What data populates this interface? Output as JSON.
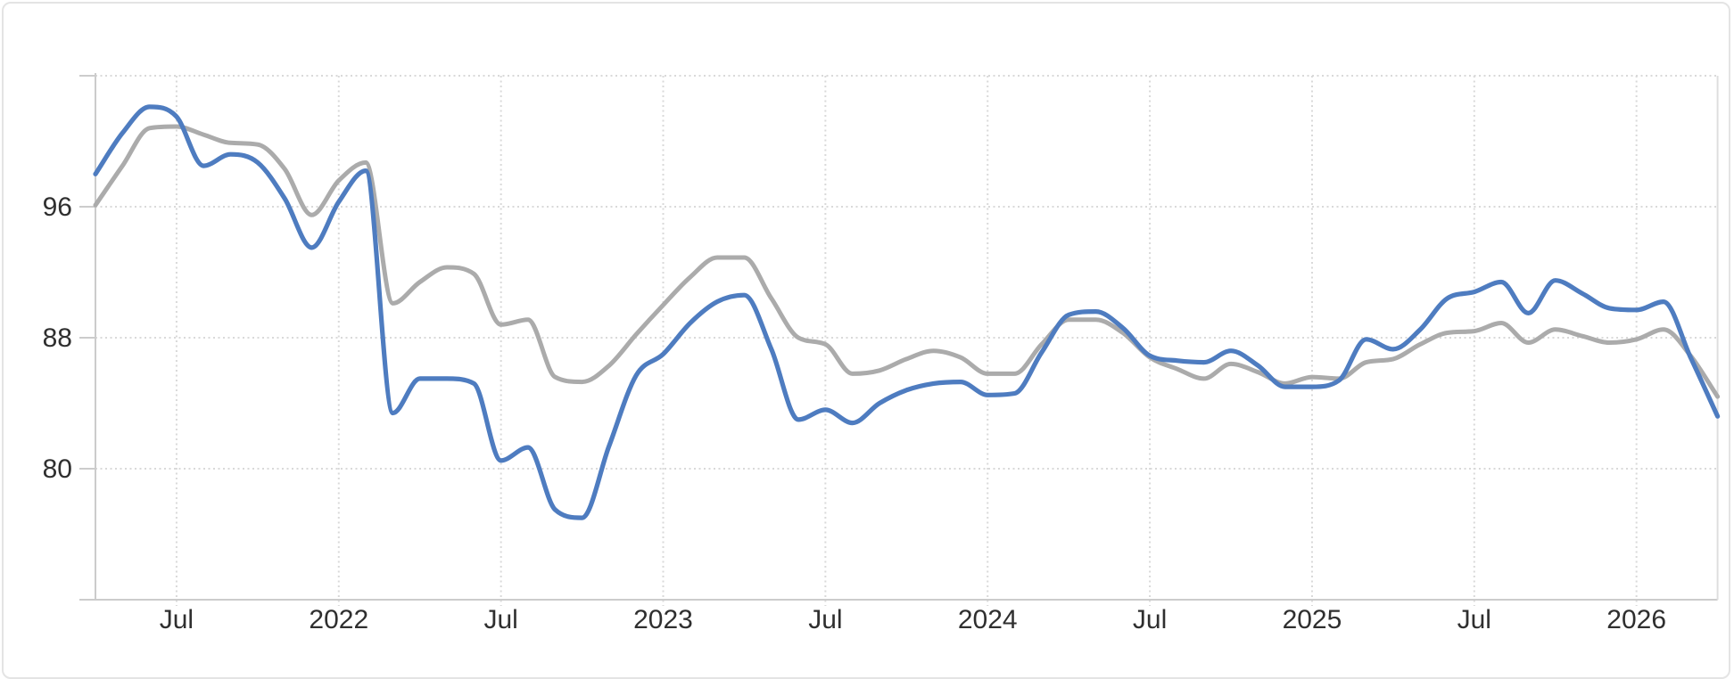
{
  "chart_data": {
    "type": "line",
    "title": "",
    "xlabel": "",
    "ylabel": "",
    "grid": "dotted",
    "legend": "none",
    "ylim": [
      72,
      104
    ],
    "y_gridline_values": [
      104,
      96,
      88,
      80
    ],
    "y_tick_values": [
      96,
      88,
      80
    ],
    "y_tick_labels": [
      "96",
      "88",
      "80"
    ],
    "x_tick_indices": [
      3,
      9,
      15,
      21,
      27,
      33,
      39,
      45,
      51,
      57
    ],
    "x_tick_labels": [
      "Jul",
      "2022",
      "Jul",
      "2023",
      "Jul",
      "2024",
      "Jul",
      "2025",
      "Jul",
      "2026"
    ],
    "x": [
      "2021-04",
      "2021-05",
      "2021-06",
      "2021-07",
      "2021-08",
      "2021-09",
      "2021-10",
      "2021-11",
      "2021-12",
      "2022-01",
      "2022-02",
      "2022-03",
      "2022-04",
      "2022-05",
      "2022-06",
      "2022-07",
      "2022-08",
      "2022-09",
      "2022-10",
      "2022-11",
      "2022-12",
      "2023-01",
      "2023-02",
      "2023-03",
      "2023-04",
      "2023-05",
      "2023-06",
      "2023-07",
      "2023-08",
      "2023-09",
      "2023-10",
      "2023-11",
      "2023-12",
      "2024-01",
      "2024-02",
      "2024-03",
      "2024-04",
      "2024-05",
      "2024-06",
      "2024-07",
      "2024-08",
      "2024-09",
      "2024-10",
      "2024-11",
      "2024-12",
      "2025-01",
      "2025-02",
      "2025-03",
      "2025-04",
      "2025-05",
      "2025-06",
      "2025-07",
      "2025-08",
      "2025-09",
      "2025-10",
      "2025-11",
      "2025-12",
      "2026-01",
      "2026-02",
      "2026-03",
      "2026-04"
    ],
    "series": [
      {
        "name": "gray-series",
        "color": "#ababab",
        "stroke_width": 5,
        "values": [
          96.1,
          98.5,
          100.8,
          100.9,
          100.4,
          99.9,
          99.8,
          98.3,
          95.5,
          97.6,
          98.7,
          90.1,
          91.4,
          92.3,
          91.9,
          88.8,
          89.1,
          85.6,
          85.3,
          86.3,
          88.2,
          90.0,
          91.7,
          92.9,
          92.9,
          90.4,
          88.0,
          87.6,
          85.8,
          86.0,
          86.7,
          87.2,
          86.8,
          85.8,
          85.8,
          87.6,
          89.1,
          89.1,
          88.3,
          86.8,
          86.1,
          85.5,
          86.4,
          85.9,
          85.2,
          85.6,
          85.5,
          86.5,
          86.7,
          87.6,
          88.3,
          88.4,
          88.9,
          87.7,
          88.5,
          88.1,
          87.7,
          87.9,
          88.5,
          86.9,
          84.4
        ]
      },
      {
        "name": "blue-series",
        "color": "#4e7cc0",
        "stroke_width": 5.2,
        "values": [
          98.0,
          100.5,
          102.1,
          101.5,
          98.5,
          99.2,
          98.7,
          96.5,
          93.5,
          96.3,
          98.2,
          83.4,
          85.5,
          85.5,
          85.2,
          80.5,
          81.3,
          77.5,
          77.0,
          81.4,
          85.7,
          87.0,
          88.9,
          90.2,
          90.6,
          87.3,
          83.0,
          83.6,
          82.8,
          84.0,
          84.8,
          85.2,
          85.3,
          84.5,
          84.6,
          87.1,
          89.4,
          89.6,
          88.6,
          86.9,
          86.6,
          86.5,
          87.2,
          86.3,
          85.0,
          85.0,
          85.4,
          87.9,
          87.3,
          88.5,
          90.4,
          90.8,
          91.4,
          89.5,
          91.5,
          90.7,
          89.8,
          89.7,
          90.2,
          86.8,
          83.2
        ]
      }
    ],
    "colors": {
      "gridline": "#d9d9d9",
      "axis": "#cccccc",
      "plot_border": "#dedede",
      "tick_text": "#2f2f2f",
      "card_border": "#e4e4e4",
      "background": "#ffffff"
    }
  }
}
